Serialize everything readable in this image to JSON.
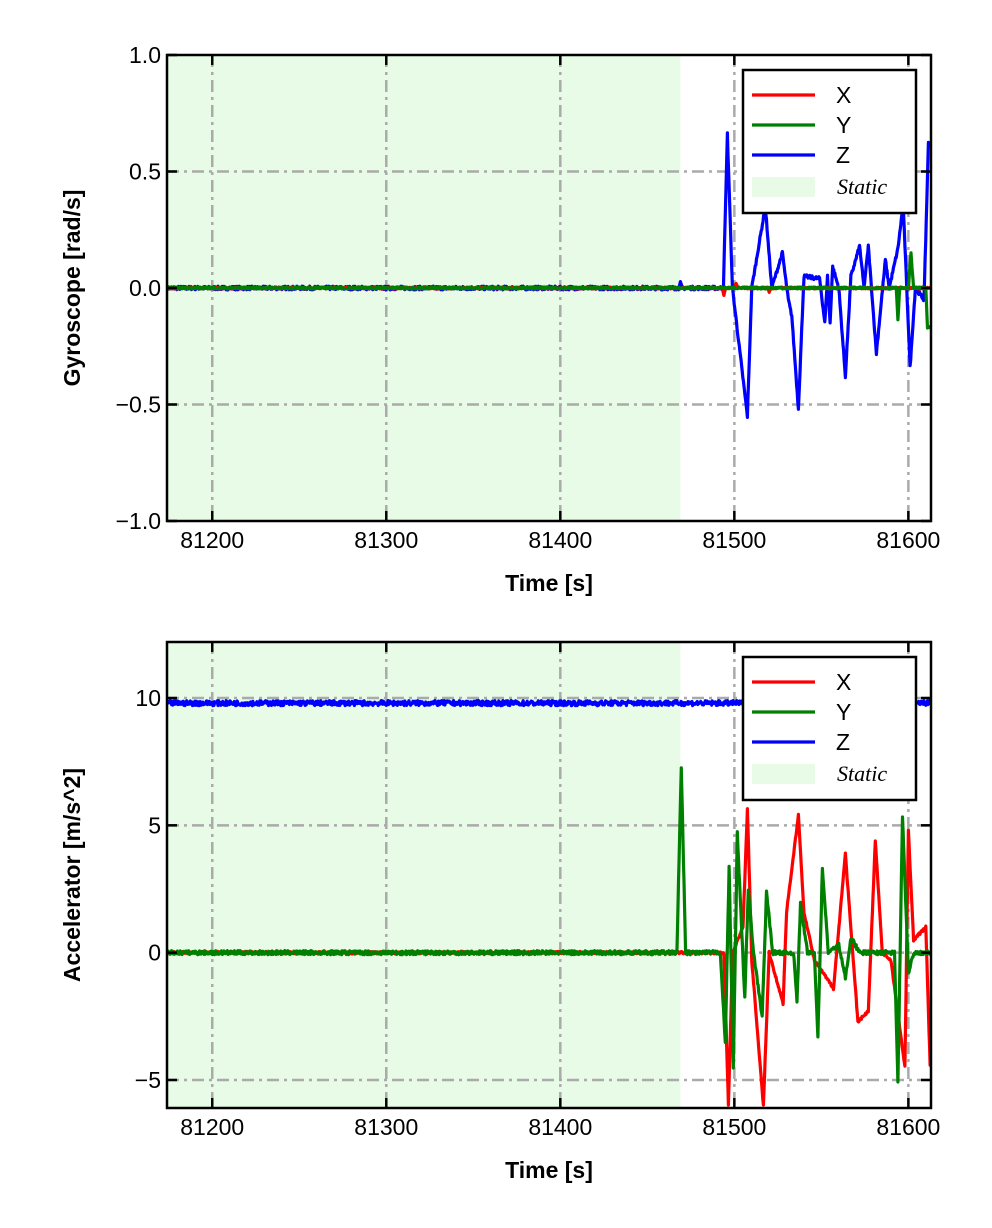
{
  "chart_data": [
    {
      "type": "line",
      "xlabel": "Time [s]",
      "ylabel": "Gyroscope [rad/s]",
      "xlim": [
        81174,
        81613
      ],
      "ylim": [
        -1.0,
        1.0
      ],
      "xticks": [
        81200,
        81300,
        81400,
        81500,
        81600
      ],
      "xtick_labels": [
        "81200",
        "81300",
        "81400",
        "81500",
        "81600"
      ],
      "yticks": [
        -1.0,
        -0.5,
        0.0,
        0.5,
        1.0
      ],
      "ytick_labels": [
        "−1.0",
        "−0.5",
        "0.0",
        "0.5",
        "1.0"
      ],
      "grid": true,
      "legend_position": "top-right",
      "static_span": [
        81174,
        81469
      ],
      "static_label": "Static",
      "colors": {
        "X": "#ff0000",
        "Y": "#008000",
        "Z": "#0000ff",
        "Static": "#e8fbe6"
      },
      "series": [
        {
          "name": "X",
          "x": [
            81174,
            81493,
            81494,
            81495,
            81500,
            81501,
            81502,
            81519,
            81520,
            81521,
            81613
          ],
          "y": [
            0,
            0,
            -0.03,
            0,
            0,
            0.02,
            0,
            0,
            -0.02,
            0,
            0
          ]
        },
        {
          "name": "Y",
          "x": [
            81174,
            81593,
            81594,
            81595,
            81600,
            81601.5,
            81603,
            81610,
            81611,
            81613
          ],
          "y": [
            0,
            0,
            -0.14,
            0,
            0,
            0.15,
            0,
            0,
            -0.17,
            -0.17
          ]
        },
        {
          "name": "Z",
          "x": [
            81174,
            81468,
            81469,
            81470,
            81493.7,
            81496,
            81498.9,
            81507.5,
            81510,
            81517.8,
            81521.5,
            81527.6,
            81531,
            81533,
            81536.8,
            81540,
            81549,
            81552,
            81553.5,
            81555,
            81556.5,
            81560,
            81563.8,
            81567,
            81572,
            81574.5,
            81577,
            81581.6,
            81586.8,
            81589,
            81594,
            81597,
            81601,
            81604,
            81609,
            81611.5,
            81613
          ],
          "y": [
            0,
            0,
            0.02,
            0,
            0,
            0.66,
            0,
            -0.55,
            0,
            0.35,
            0,
            0.15,
            -0.05,
            -0.12,
            -0.52,
            0.05,
            0.04,
            -0.15,
            0.05,
            -0.15,
            0.09,
            0.0,
            -0.38,
            0.05,
            0.18,
            0.0,
            0.18,
            -0.28,
            0.12,
            0.0,
            0.17,
            0.36,
            -0.34,
            0,
            -0.05,
            0.62,
            0.62
          ]
        }
      ]
    },
    {
      "type": "line",
      "xlabel": "Time [s]",
      "ylabel": "Accelerator [m/s^2]",
      "xlim": [
        81174,
        81613
      ],
      "ylim": [
        -6.1,
        12.2
      ],
      "xticks": [
        81200,
        81300,
        81400,
        81500,
        81600
      ],
      "xtick_labels": [
        "81200",
        "81300",
        "81400",
        "81500",
        "81600"
      ],
      "yticks": [
        -5,
        0,
        5,
        10
      ],
      "ytick_labels": [
        "−5",
        "0",
        "5",
        "10"
      ],
      "grid": true,
      "legend_position": "top-right",
      "static_span": [
        81174,
        81469
      ],
      "static_label": "Static",
      "colors": {
        "X": "#ff0000",
        "Y": "#008000",
        "Z": "#0000ff",
        "Static": "#e8fbe6"
      },
      "series": [
        {
          "name": "X",
          "x": [
            81174,
            81494,
            81496.6,
            81499,
            81505,
            81507.5,
            81510,
            81516.7,
            81520,
            81528,
            81530,
            81536.8,
            81540,
            81546,
            81557,
            81563.8,
            81567,
            81571,
            81577,
            81581,
            81585,
            81590,
            81598,
            81600,
            81603,
            81610,
            81612.5,
            81613
          ],
          "y": [
            0,
            0,
            -6.0,
            0,
            1.0,
            5.7,
            -0.3,
            -6.0,
            0,
            -2.0,
            1.6,
            5.4,
            1.6,
            -0.3,
            -1.4,
            3.9,
            0.9,
            -2.7,
            -2.3,
            4.4,
            0,
            -0.3,
            -4.5,
            4.8,
            0.5,
            1.0,
            -4.4,
            -4.4
          ]
        },
        {
          "name": "Y",
          "x": [
            81174,
            81467,
            81469.5,
            81472,
            81492,
            81494.8,
            81497,
            81499.4,
            81501.7,
            81506,
            81508,
            81511,
            81516,
            81518.5,
            81522,
            81534,
            81536,
            81538,
            81542,
            81546,
            81548,
            81550.6,
            81554,
            81560,
            81563.8,
            81567,
            81572,
            81592,
            81594,
            81596.6,
            81600,
            81603,
            81613
          ],
          "y": [
            0,
            0,
            7.3,
            0,
            0,
            -3.6,
            3.4,
            -4.6,
            4.7,
            -1.8,
            2.5,
            0,
            -2.5,
            2.4,
            0,
            0,
            -1.9,
            1.9,
            0,
            0,
            -3.3,
            3.3,
            0,
            0.3,
            -1.0,
            0.6,
            0,
            0,
            -5.1,
            5.4,
            -0.8,
            0,
            0
          ]
        },
        {
          "name": "Z",
          "x": [
            81174,
            81613
          ],
          "y": [
            9.8,
            9.8
          ]
        }
      ]
    }
  ]
}
